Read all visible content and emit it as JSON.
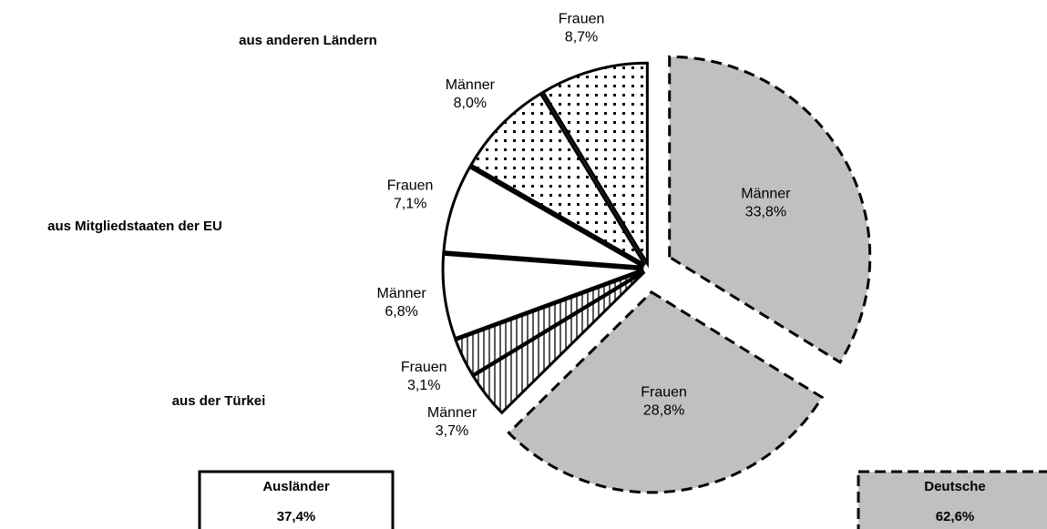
{
  "chart_data": {
    "type": "pie",
    "categories": [
      "Männer",
      "Frauen",
      "Männer",
      "Frauen",
      "Männer",
      "Frauen",
      "Männer",
      "Frauen"
    ],
    "values": [
      33.8,
      28.8,
      3.7,
      3.1,
      6.8,
      7.1,
      8.0,
      8.7
    ],
    "value_labels": [
      "33,8%",
      "28,8%",
      "3,7%",
      "3,1%",
      "6,8%",
      "7,1%",
      "8,0%",
      "8,7%"
    ],
    "fills": [
      "#c0c0c0",
      "#c0c0c0",
      "vertical-lines",
      "vertical-lines",
      "#ffffff",
      "#ffffff",
      "dots",
      "dots"
    ],
    "outlines": [
      "dashed",
      "dashed",
      "solid",
      "solid",
      "solid",
      "solid",
      "solid",
      "solid"
    ],
    "group_labels": [
      "aus der Türkei",
      "aus Mitgliedstaaten der EU",
      "aus anderen Ländern"
    ],
    "totals": [
      {
        "name": "Ausländer",
        "value": 37.4,
        "value_label": "37,4%"
      },
      {
        "name": "Deutsche",
        "value": 62.6,
        "value_label": "62,6%"
      }
    ]
  }
}
